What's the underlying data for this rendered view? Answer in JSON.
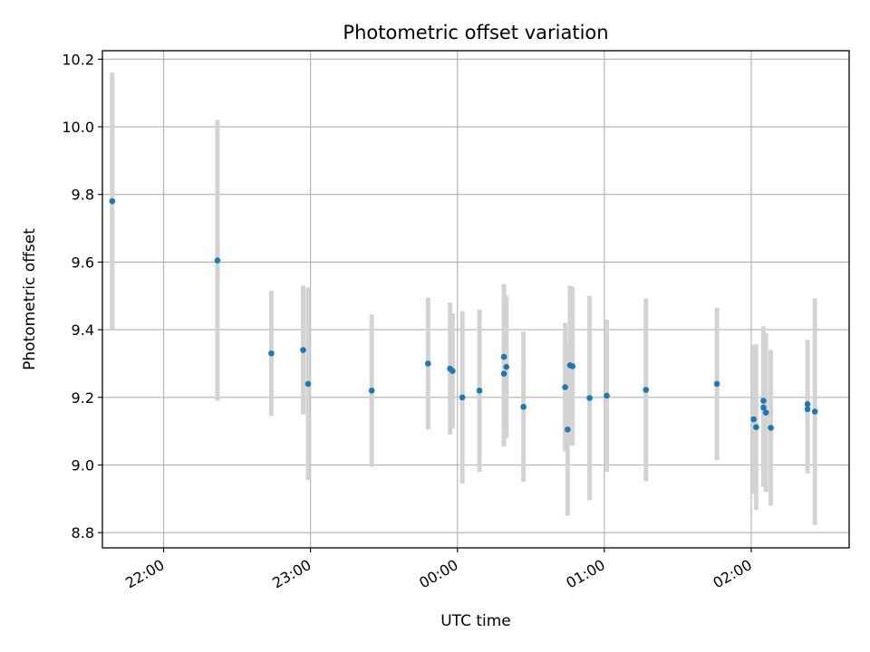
{
  "chart_data": {
    "type": "scatter",
    "title": "Photometric offset variation",
    "xlabel": "UTC time",
    "ylabel": "Photometric offset",
    "x_axis": {
      "type": "time",
      "range": [
        "21:35",
        "26:40"
      ]
    },
    "ylim": [
      8.755,
      10.225
    ],
    "grid": true,
    "x_ticks": [
      {
        "t": "22:00",
        "label": "22:00"
      },
      {
        "t": "23:00",
        "label": "23:00"
      },
      {
        "t": "24:00",
        "label": "00:00"
      },
      {
        "t": "25:00",
        "label": "01:00"
      },
      {
        "t": "26:00",
        "label": "02:00"
      }
    ],
    "y_ticks": [
      8.8,
      9.0,
      9.2,
      9.4,
      9.6,
      9.8,
      10.0,
      10.2
    ],
    "colors": {
      "point": "#1f77b4",
      "errorbar": "#d3d3d3",
      "grid": "#b0b0b0"
    },
    "series": [
      {
        "points": [
          {
            "t": "21:39",
            "y": 9.78,
            "err": 0.38
          },
          {
            "t": "22:22",
            "y": 9.605,
            "err": 0.415
          },
          {
            "t": "22:44",
            "y": 9.33,
            "err": 0.185
          },
          {
            "t": "22:57",
            "y": 9.34,
            "err": 0.19
          },
          {
            "t": "22:59",
            "y": 9.24,
            "err": 0.285
          },
          {
            "t": "23:25",
            "y": 9.22,
            "err": 0.225
          },
          {
            "t": "23:48",
            "y": 9.3,
            "err": 0.195
          },
          {
            "t": "23:57",
            "y": 9.285,
            "err": 0.195
          },
          {
            "t": "23:58",
            "y": 9.278,
            "err": 0.17
          },
          {
            "t": "24:02",
            "y": 9.2,
            "err": 0.255
          },
          {
            "t": "24:09",
            "y": 9.22,
            "err": 0.24
          },
          {
            "t": "24:19",
            "y": 9.27,
            "err": 0.215
          },
          {
            "t": "24:19",
            "y": 9.32,
            "err": 0.215
          },
          {
            "t": "24:20",
            "y": 9.29,
            "err": 0.21
          },
          {
            "t": "24:27",
            "y": 9.172,
            "err": 0.222
          },
          {
            "t": "24:44",
            "y": 9.23,
            "err": 0.19
          },
          {
            "t": "24:45",
            "y": 9.105,
            "err": 0.255
          },
          {
            "t": "24:46",
            "y": 9.295,
            "err": 0.235
          },
          {
            "t": "24:47",
            "y": 9.292,
            "err": 0.235
          },
          {
            "t": "24:54",
            "y": 9.198,
            "err": 0.302
          },
          {
            "t": "25:01",
            "y": 9.205,
            "err": 0.225
          },
          {
            "t": "25:17",
            "y": 9.222,
            "err": 0.27
          },
          {
            "t": "25:46",
            "y": 9.24,
            "err": 0.225
          },
          {
            "t": "26:01",
            "y": 9.135,
            "err": 0.22
          },
          {
            "t": "26:02",
            "y": 9.112,
            "err": 0.245
          },
          {
            "t": "26:05",
            "y": 9.19,
            "err": 0.22
          },
          {
            "t": "26:05",
            "y": 9.17,
            "err": 0.235
          },
          {
            "t": "26:06",
            "y": 9.155,
            "err": 0.235
          },
          {
            "t": "26:08",
            "y": 9.11,
            "err": 0.23
          },
          {
            "t": "26:23",
            "y": 9.18,
            "err": 0.19
          },
          {
            "t": "26:23",
            "y": 9.165,
            "err": 0.19
          },
          {
            "t": "26:26",
            "y": 9.158,
            "err": 0.335
          }
        ]
      }
    ]
  }
}
